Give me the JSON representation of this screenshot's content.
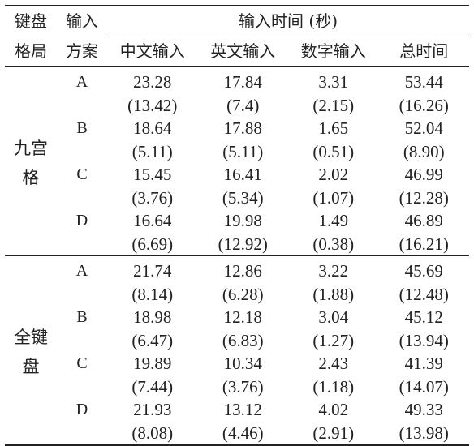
{
  "header": {
    "layout_label_line1": "键盘",
    "layout_label_line2": "格局",
    "scheme_label_line1": "输入",
    "scheme_label_line2": "方案",
    "time_group_label": "输入时间 (秒)",
    "columns": [
      "中文输入",
      "英文输入",
      "数字输入",
      "总时间"
    ]
  },
  "groups": [
    {
      "layout_line1": "九宫",
      "layout_line2": "格",
      "rows": [
        {
          "scheme": "A",
          "means": [
            "23.28",
            "17.84",
            "3.31",
            "53.44"
          ],
          "sds": [
            "(13.42)",
            "(7.4)",
            "(2.15)",
            "(16.26)"
          ]
        },
        {
          "scheme": "B",
          "means": [
            "18.64",
            "17.88",
            "1.65",
            "52.04"
          ],
          "sds": [
            "(5.11)",
            "(5.11)",
            "(0.51)",
            "(8.90)"
          ]
        },
        {
          "scheme": "C",
          "means": [
            "15.45",
            "16.41",
            "2.02",
            "46.99"
          ],
          "sds": [
            "(3.76)",
            "(5.34)",
            "(1.07)",
            "(12.28)"
          ]
        },
        {
          "scheme": "D",
          "means": [
            "16.64",
            "19.98",
            "1.49",
            "46.89"
          ],
          "sds": [
            "(6.69)",
            "(12.92)",
            "(0.38)",
            "(16.21)"
          ]
        }
      ]
    },
    {
      "layout_line1": "全键",
      "layout_line2": "盘",
      "rows": [
        {
          "scheme": "A",
          "means": [
            "21.74",
            "12.86",
            "3.22",
            "45.69"
          ],
          "sds": [
            "(8.14)",
            "(6.28)",
            "(1.88)",
            "(12.48)"
          ]
        },
        {
          "scheme": "B",
          "means": [
            "18.98",
            "12.18",
            "3.04",
            "45.12"
          ],
          "sds": [
            "(6.47)",
            "(6.83)",
            "(1.27)",
            "(13.94)"
          ]
        },
        {
          "scheme": "C",
          "means": [
            "19.89",
            "10.34",
            "2.43",
            "41.39"
          ],
          "sds": [
            "(7.44)",
            "(3.76)",
            "(1.18)",
            "(14.07)"
          ]
        },
        {
          "scheme": "D",
          "means": [
            "21.93",
            "13.12",
            "4.02",
            "49.33"
          ],
          "sds": [
            "(8.08)",
            "(4.46)",
            "(2.91)",
            "(13.98)"
          ]
        }
      ]
    }
  ]
}
